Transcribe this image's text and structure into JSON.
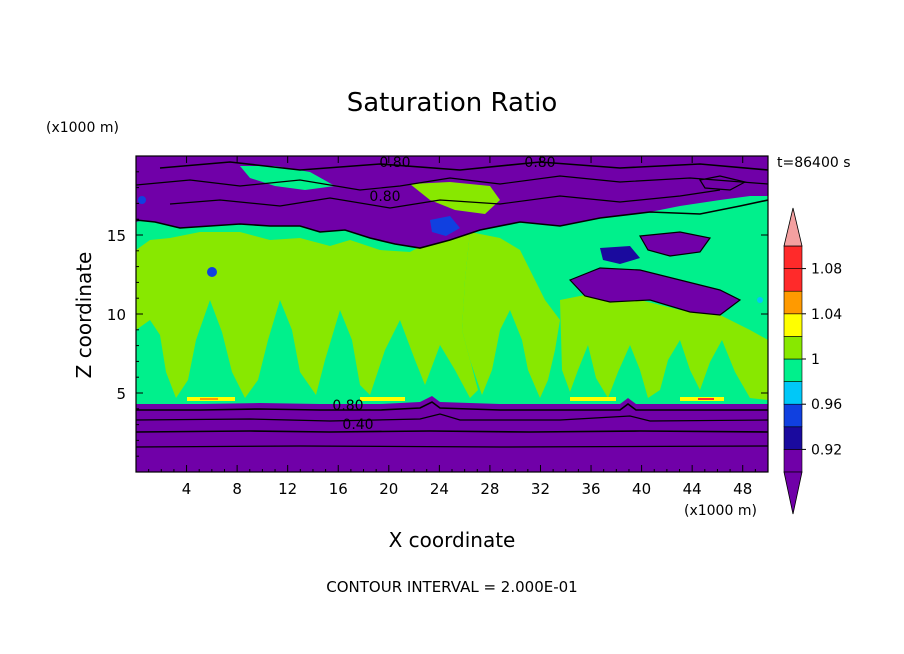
{
  "colors": {
    "purple": "#7000a8",
    "navy": "#1a0a9e",
    "blue": "#1040e0",
    "cyan": "#00c8f8",
    "green": "#00f08c",
    "yellowgreen": "#88e800",
    "yellow": "#ffff00",
    "orange": "#ff9a00",
    "red": "#ff2a2a",
    "pink": "#f4a0a0"
  },
  "chart_data": {
    "type": "contour",
    "title": "Saturation Ratio",
    "xlabel": "X coordinate",
    "ylabel": "Z coordinate",
    "x_unit": "(x1000 m)",
    "y_unit": "(x1000 m)",
    "time_label": "t=86400 s",
    "footnote": "CONTOUR INTERVAL = 2.000E-01",
    "xlim": [
      0,
      50
    ],
    "ylim": [
      0,
      20
    ],
    "x_ticks": [
      "4",
      "8",
      "12",
      "16",
      "20",
      "24",
      "28",
      "32",
      "36",
      "40",
      "44",
      "48"
    ],
    "y_ticks": [
      "5",
      "10",
      "15"
    ],
    "contour_labels": [
      "0.80",
      "0.80",
      "0.80",
      "0.80",
      "0.40"
    ],
    "colorbar": {
      "labels": [
        "1.08",
        "1.04",
        "1",
        "0.96",
        "0.92"
      ],
      "levels": [
        0.9,
        0.92,
        0.94,
        0.96,
        0.98,
        1.0,
        1.02,
        1.04,
        1.06,
        1.08,
        1.1
      ],
      "extend": "both"
    }
  }
}
